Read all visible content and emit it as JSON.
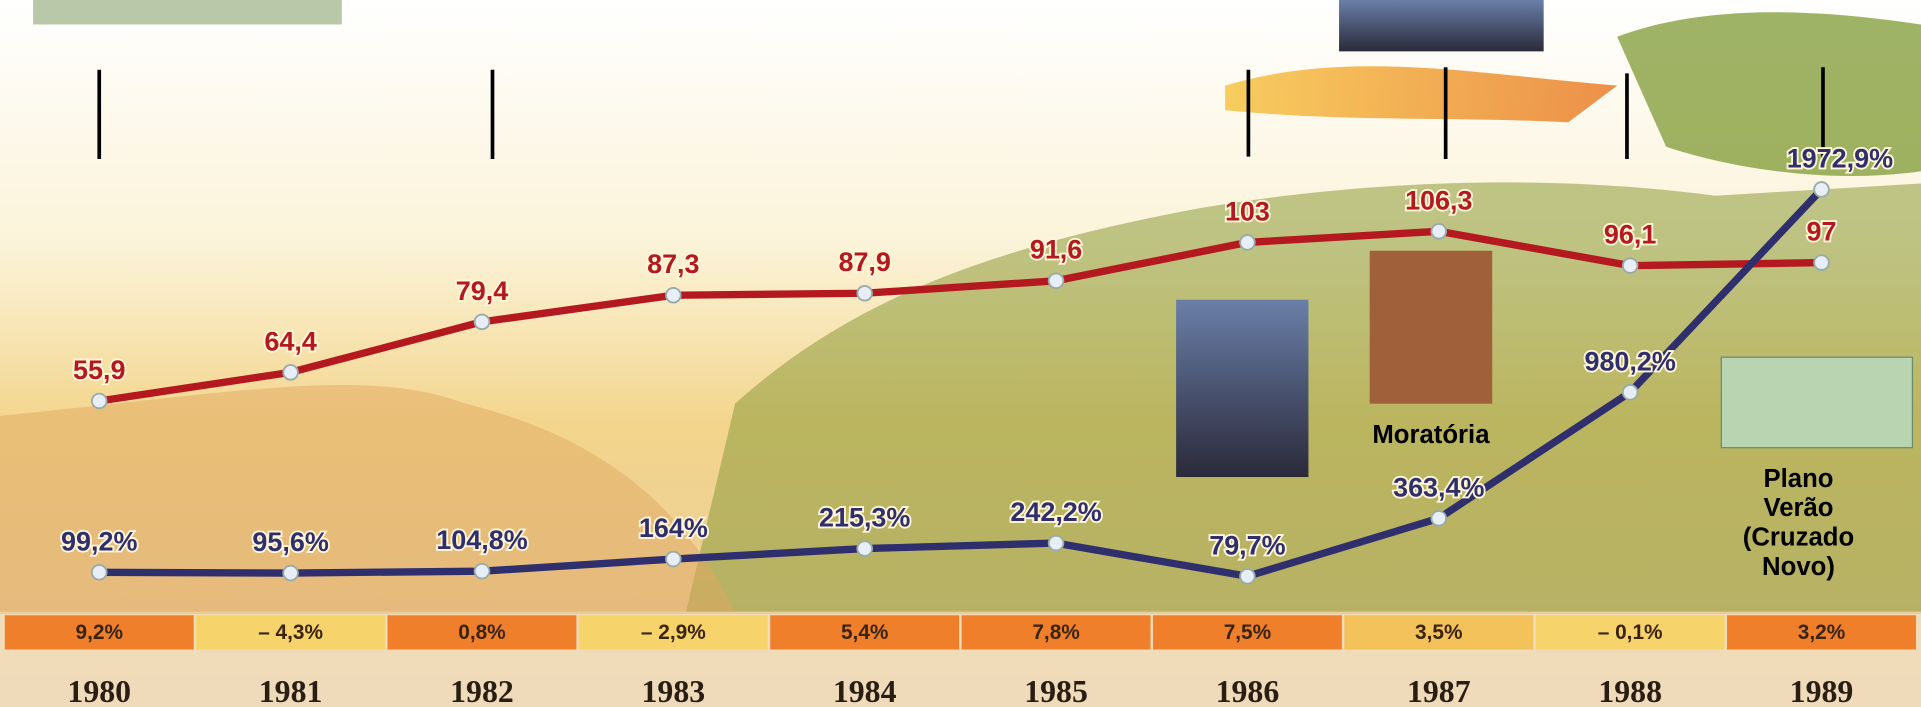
{
  "chart_data": {
    "type": "line",
    "categories": [
      "1980",
      "1981",
      "1982",
      "1983",
      "1984",
      "1985",
      "1986",
      "1987",
      "1988",
      "1989"
    ],
    "ylim": [
      -35,
      175
    ],
    "y2lim": [
      -560,
      2900
    ],
    "series": [
      {
        "color": "#b3191f",
        "values": [
          55.9,
          64.4,
          79.4,
          87.3,
          87.9,
          91.6,
          103,
          106.3,
          96.1,
          97
        ],
        "value_labels": [
          "55,9",
          "64,4",
          "79,4",
          "87,3",
          "87,9",
          "91,6",
          "103",
          "106,3",
          "96,1",
          "97"
        ]
      },
      {
        "color": "#2f2f6e",
        "axis": "y2",
        "values": [
          99.2,
          95.6,
          104.8,
          164,
          215.3,
          242.2,
          79.7,
          363.4,
          980.2,
          1972.9
        ],
        "value_labels": [
          "99,2%",
          "95,6%",
          "104,8%",
          "164%",
          "215,3%",
          "242,2%",
          "79,7%",
          "363,4%",
          "980,2%",
          "1972,9%"
        ]
      }
    ],
    "growth": {
      "values": [
        9.2,
        -4.3,
        0.8,
        -2.9,
        5.4,
        7.8,
        7.5,
        3.5,
        -0.1,
        3.2
      ],
      "value_labels": [
        "9,2%",
        "– 4,3%",
        "0,8%",
        "– 2,9%",
        "5,4%",
        "7,8%",
        "7,5%",
        "3,5%",
        "– 0,1%",
        "3,2%"
      ],
      "colors": [
        "#ef7f2a",
        "#f6d46b",
        "#ef7f2a",
        "#f6d46b",
        "#ef7f2a",
        "#ef7f2a",
        "#ef7f2a",
        "#f4c25a",
        "#f6d46b",
        "#ef7f2a"
      ]
    },
    "annotations": [
      {
        "lines": [
          "Moratória"
        ]
      },
      {
        "lines": [
          "Plano",
          "Verão",
          "(Cruzado",
          "Novo)"
        ]
      }
    ]
  }
}
